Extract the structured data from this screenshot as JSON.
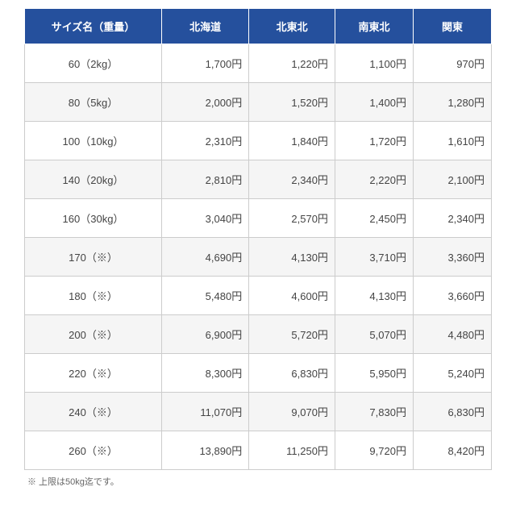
{
  "table": {
    "header_bg": "#25509d",
    "header_fg": "#ffffff",
    "border_color": "#cccccc",
    "alt_row_bg": "#f5f5f5",
    "currency_suffix": "円",
    "columns": [
      "サイズ名（重量）",
      "北海道",
      "北東北",
      "南東北",
      "関東"
    ],
    "col_widths": [
      "170px",
      "auto",
      "auto",
      "auto",
      "auto"
    ],
    "rows": [
      {
        "size": "60（2kg）",
        "prices": [
          "1,700",
          "1,220",
          "1,100",
          "970"
        ]
      },
      {
        "size": "80（5kg）",
        "prices": [
          "2,000",
          "1,520",
          "1,400",
          "1,280"
        ]
      },
      {
        "size": "100（10kg）",
        "prices": [
          "2,310",
          "1,840",
          "1,720",
          "1,610"
        ]
      },
      {
        "size": "140（20kg）",
        "prices": [
          "2,810",
          "2,340",
          "2,220",
          "2,100"
        ]
      },
      {
        "size": "160（30kg）",
        "prices": [
          "3,040",
          "2,570",
          "2,450",
          "2,340"
        ]
      },
      {
        "size": "170（※）",
        "prices": [
          "4,690",
          "4,130",
          "3,710",
          "3,360"
        ]
      },
      {
        "size": "180（※）",
        "prices": [
          "5,480",
          "4,600",
          "4,130",
          "3,660"
        ]
      },
      {
        "size": "200（※）",
        "prices": [
          "6,900",
          "5,720",
          "5,070",
          "4,480"
        ]
      },
      {
        "size": "220（※）",
        "prices": [
          "8,300",
          "6,830",
          "5,950",
          "5,240"
        ]
      },
      {
        "size": "240（※）",
        "prices": [
          "11,070",
          "9,070",
          "7,830",
          "6,830"
        ]
      },
      {
        "size": "260（※）",
        "prices": [
          "13,890",
          "11,250",
          "9,720",
          "8,420"
        ]
      }
    ]
  },
  "footnote": "※ 上限は50kg迄です。"
}
